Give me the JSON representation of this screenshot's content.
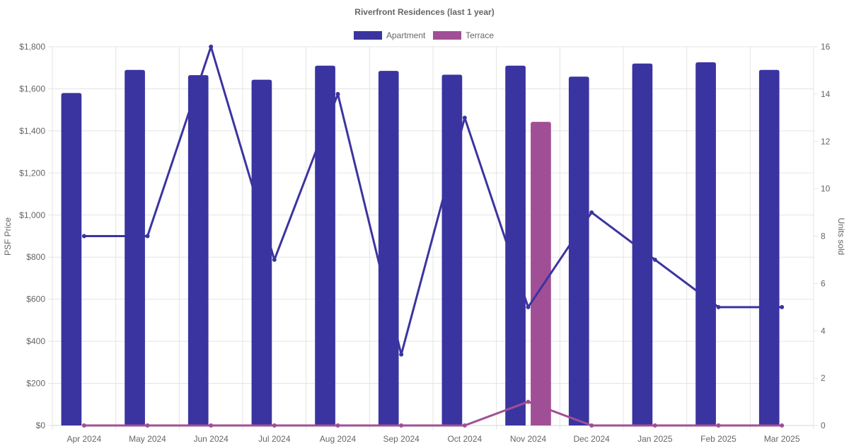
{
  "chart_data": {
    "type": "bar",
    "title": "Riverfront Residences (last 1 year)",
    "categories": [
      "Apr 2024",
      "May 2024",
      "Jun 2024",
      "Jul 2024",
      "Aug 2024",
      "Sep 2024",
      "Oct 2024",
      "Nov 2024",
      "Dec 2024",
      "Jan 2025",
      "Feb 2025",
      "Mar 2025"
    ],
    "ylabel": "PSF Price",
    "y2label": "Units sold",
    "ylim": [
      0,
      1800
    ],
    "y2lim": [
      0,
      16
    ],
    "y_ticks": [
      "$0",
      "$200",
      "$400",
      "$600",
      "$800",
      "$1,000",
      "$1,200",
      "$1,400",
      "$1,600",
      "$1,800"
    ],
    "y_tick_values": [
      0,
      200,
      400,
      600,
      800,
      1000,
      1200,
      1400,
      1600,
      1800
    ],
    "y2_ticks": [
      "0",
      "2",
      "4",
      "6",
      "8",
      "10",
      "12",
      "14",
      "16"
    ],
    "y2_tick_values": [
      0,
      2,
      4,
      6,
      8,
      10,
      12,
      14,
      16
    ],
    "grid": true,
    "legend": {
      "position": "top",
      "entries": [
        "Apartment",
        "Terrace"
      ]
    },
    "series": [
      {
        "name": "Apartment",
        "kind": "bar",
        "axis": "left",
        "color": "#3a34a0",
        "values": [
          1580,
          1690,
          1665,
          1643,
          1710,
          1685,
          1667,
          1710,
          1658,
          1720,
          1726,
          1690
        ]
      },
      {
        "name": "Terrace",
        "kind": "bar",
        "axis": "left",
        "color": "#a04f96",
        "values": [
          null,
          null,
          null,
          null,
          null,
          null,
          null,
          1443,
          null,
          null,
          null,
          null
        ]
      },
      {
        "name": "Apartment",
        "kind": "line",
        "axis": "right",
        "color": "#3a34a0",
        "values": [
          8,
          8,
          16,
          7,
          14,
          3,
          13,
          5,
          9,
          7,
          5,
          5
        ]
      },
      {
        "name": "Terrace",
        "kind": "line",
        "axis": "right",
        "color": "#a04f96",
        "values": [
          0,
          0,
          0,
          0,
          0,
          0,
          0,
          1,
          0,
          0,
          0,
          0
        ]
      }
    ]
  }
}
